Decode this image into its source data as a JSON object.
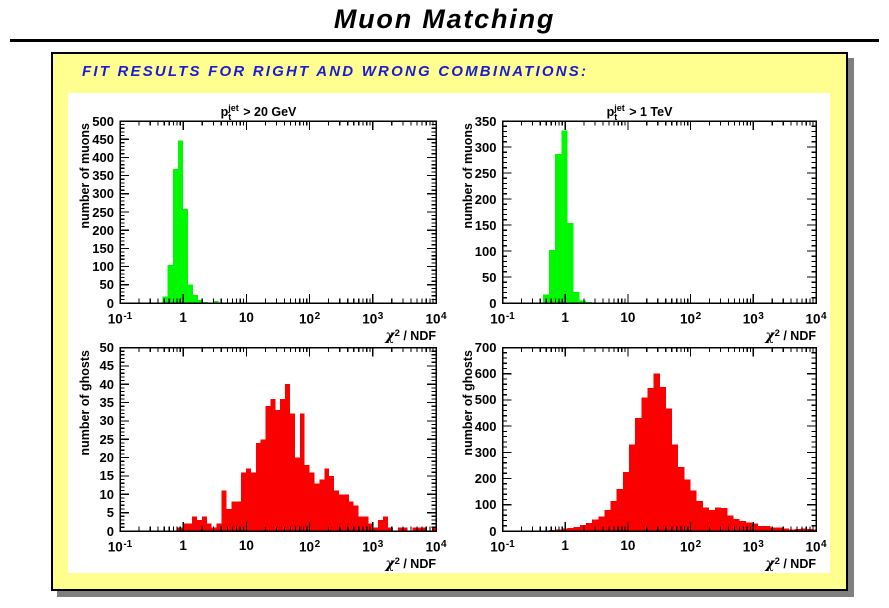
{
  "page": {
    "title": "Muon Matching",
    "heading": "FIT RESULTS FOR RIGHT AND WRONG COMBINATIONS:"
  },
  "colors": {
    "slide_bg": "#ffff8f",
    "slide_border": "#000000",
    "shadow_gray": "#7f7f7f",
    "heading_blue": "#1b1bd3",
    "muons_green": "#00f900",
    "ghosts_red": "#fb0000",
    "axis_black": "#000000"
  },
  "chart_data": [
    {
      "id": "muons-pt20gev",
      "type": "bar",
      "title": {
        "base": "p",
        "sup": "jet",
        "sub": "t",
        "rest": " > 20 GeV"
      },
      "ylabel": "number of muons",
      "xlabel": {
        "sym": "χ",
        "sup": "2",
        "rest": " / NDF"
      },
      "xscale": "log",
      "xlim_log10": [
        -1,
        4
      ],
      "x_tick_labels": [
        {
          "base": "10",
          "sup": "-1"
        },
        {
          "base": "1"
        },
        {
          "base": "10"
        },
        {
          "base": "10",
          "sup": "2"
        },
        {
          "base": "10",
          "sup": "3"
        },
        {
          "base": "10",
          "sup": "4"
        }
      ],
      "ylim": [
        0,
        500
      ],
      "y_major_step": 50,
      "y_minor_step": 10,
      "y_tick_labels": [
        "0",
        "50",
        "100",
        "150",
        "200",
        "250",
        "300",
        "350",
        "400",
        "450",
        "500"
      ],
      "grid": false,
      "legend": null,
      "fill_color_key": "muons_green",
      "bins_log10": {
        "start": -0.325,
        "step": 0.08
      },
      "values": [
        18,
        105,
        368,
        447,
        258,
        51,
        22,
        8,
        3,
        0,
        5
      ]
    },
    {
      "id": "muons-pt1tev",
      "type": "bar",
      "title": {
        "base": "p",
        "sup": "jet",
        "sub": "t",
        "rest": " > 1 TeV"
      },
      "ylabel": "number of muons",
      "xlabel": {
        "sym": "χ",
        "sup": "2",
        "rest": " / NDF"
      },
      "xscale": "log",
      "xlim_log10": [
        -1,
        4
      ],
      "x_tick_labels": [
        {
          "base": "10",
          "sup": "-1"
        },
        {
          "base": "1"
        },
        {
          "base": "10"
        },
        {
          "base": "10",
          "sup": "2"
        },
        {
          "base": "10",
          "sup": "3"
        },
        {
          "base": "10",
          "sup": "4"
        }
      ],
      "ylim": [
        0,
        350
      ],
      "y_major_step": 50,
      "y_minor_step": 10,
      "y_tick_labels": [
        "0",
        "50",
        "100",
        "150",
        "200",
        "250",
        "300",
        "350"
      ],
      "grid": false,
      "legend": null,
      "fill_color_key": "muons_green",
      "bins_log10": {
        "start": -0.357,
        "step": 0.098
      },
      "values": [
        16,
        102,
        287,
        332,
        154,
        21,
        5,
        2
      ]
    },
    {
      "id": "ghosts-pt20gev",
      "type": "bar",
      "title": null,
      "ylabel": "number of ghosts",
      "xlabel": {
        "sym": "χ",
        "sup": "2",
        "rest": " / NDF"
      },
      "xscale": "log",
      "xlim_log10": [
        -1,
        4
      ],
      "x_tick_labels": [
        {
          "base": "10",
          "sup": "-1"
        },
        {
          "base": "1"
        },
        {
          "base": "10"
        },
        {
          "base": "10",
          "sup": "2"
        },
        {
          "base": "10",
          "sup": "3"
        },
        {
          "base": "10",
          "sup": "4"
        }
      ],
      "ylim": [
        0,
        50
      ],
      "y_major_step": 5,
      "y_minor_step": 1,
      "y_tick_labels": [
        "0",
        "5",
        "10",
        "15",
        "20",
        "25",
        "30",
        "35",
        "40",
        "45",
        "50"
      ],
      "grid": false,
      "legend": null,
      "fill_color_key": "ghosts_red",
      "bins_log10": {
        "start": -0.092,
        "step": 0.0775
      },
      "values": [
        1,
        2,
        2,
        4,
        3,
        4,
        2,
        1,
        2,
        11,
        6,
        8,
        8,
        16,
        17,
        16,
        24,
        25,
        34,
        36,
        33,
        36,
        40,
        32,
        20,
        32,
        18,
        16,
        13,
        14,
        17,
        15,
        11,
        10,
        10,
        8,
        7,
        4,
        4,
        2,
        1,
        3,
        4,
        1,
        0,
        1,
        1,
        0,
        1,
        1,
        1,
        0,
        1,
        2
      ]
    },
    {
      "id": "ghosts-pt1tev",
      "type": "bar",
      "title": null,
      "ylabel": "number of ghosts",
      "xlabel": {
        "sym": "χ",
        "sup": "2",
        "rest": " / NDF"
      },
      "xscale": "log",
      "xlim_log10": [
        -1,
        4
      ],
      "x_tick_labels": [
        {
          "base": "10",
          "sup": "-1"
        },
        {
          "base": "1"
        },
        {
          "base": "10"
        },
        {
          "base": "10",
          "sup": "2"
        },
        {
          "base": "10",
          "sup": "3"
        },
        {
          "base": "10",
          "sup": "4"
        }
      ],
      "ylim": [
        0,
        700
      ],
      "y_major_step": 100,
      "y_minor_step": 20,
      "y_tick_labels": [
        "0",
        "100",
        "200",
        "300",
        "400",
        "500",
        "600",
        "700"
      ],
      "grid": false,
      "legend": null,
      "fill_color_key": "ghosts_red",
      "bins_log10": {
        "start": -0.256,
        "step": 0.098
      },
      "values": [
        4,
        6,
        9,
        12,
        16,
        22,
        30,
        44,
        56,
        80,
        115,
        160,
        225,
        330,
        432,
        510,
        545,
        600,
        550,
        467,
        330,
        245,
        197,
        155,
        115,
        90,
        80,
        90,
        88,
        60,
        45,
        39,
        33,
        28,
        20,
        19,
        13,
        14,
        9,
        6,
        7,
        10,
        8,
        5
      ]
    }
  ]
}
